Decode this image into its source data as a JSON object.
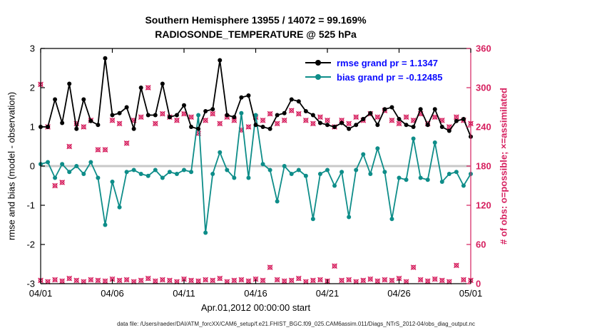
{
  "caption": "data file: /Users/raeder/DAI/ATM_forcXX/CAM6_setup/f.e21.FHIST_BGC.f09_025.CAM6assim.011/Diags_NTrS_2012-04/obs_diag_output.nc",
  "chart_data": {
    "type": "line",
    "title": "Southern Hemisphere 13955 / 14072 = 99.169%",
    "subtitle": "RADIOSONDE_TEMPERATURE @ 525 hPa",
    "xlabel": "Apr.01,2012 00:00:00 start",
    "ylabel_left": "rmse and bias (model - observation)",
    "ylabel_right": "# of obs: o=possible; ×=assimilated",
    "xlim": [
      0,
      30
    ],
    "ylim_left": [
      -3,
      3
    ],
    "ylim_right": [
      0,
      360
    ],
    "xtick_days": [
      0,
      5,
      10,
      15,
      20,
      25,
      30
    ],
    "xtick_labels": [
      "04/01",
      "04/06",
      "04/11",
      "04/16",
      "04/21",
      "04/26",
      "05/01"
    ],
    "ytick_left": [
      -3,
      -2,
      -1,
      0,
      1,
      2,
      3
    ],
    "ytick_right": [
      0,
      60,
      120,
      180,
      240,
      300,
      360
    ],
    "x_start": 0,
    "x_step": 0.5,
    "legend": [
      {
        "series": "rmse",
        "label": "rmse grand pr = 1.1347"
      },
      {
        "series": "bias",
        "label": "bias grand pr = -0.12485"
      }
    ],
    "series": [
      {
        "name": "rmse",
        "axis": "left",
        "values": [
          1.0,
          1.0,
          1.7,
          1.1,
          2.1,
          0.95,
          1.7,
          1.15,
          1.05,
          2.75,
          1.3,
          1.35,
          1.5,
          0.95,
          2.0,
          1.3,
          1.3,
          2.1,
          1.25,
          1.3,
          1.55,
          1.0,
          0.95,
          1.4,
          1.45,
          2.7,
          1.3,
          1.25,
          1.75,
          1.8,
          1.05,
          1.0,
          0.95,
          1.3,
          1.35,
          1.7,
          1.65,
          1.4,
          1.3,
          1.1,
          1.05,
          1.0,
          1.1,
          0.95,
          1.05,
          1.2,
          1.35,
          1.05,
          1.45,
          1.5,
          1.2,
          1.05,
          1.0,
          1.45,
          1.05,
          1.45,
          1.0,
          0.9,
          1.15,
          1.2,
          0.75
        ]
      },
      {
        "name": "bias",
        "axis": "left",
        "values": [
          0.05,
          0.1,
          -0.3,
          0.05,
          -0.15,
          0.0,
          -0.2,
          0.1,
          -0.3,
          -1.5,
          -0.4,
          -1.05,
          -0.15,
          -0.1,
          -0.2,
          -0.25,
          -0.1,
          -0.3,
          -0.15,
          -0.2,
          -0.1,
          -0.15,
          1.3,
          -1.7,
          -0.2,
          0.35,
          -0.1,
          -0.3,
          1.35,
          -0.3,
          1.3,
          0.05,
          -0.1,
          -0.9,
          0.0,
          -0.2,
          -0.1,
          -0.25,
          -1.35,
          -0.2,
          -0.1,
          -0.5,
          -0.15,
          -1.3,
          -0.1,
          0.3,
          -0.2,
          0.45,
          -0.15,
          -1.35,
          -0.3,
          -0.35,
          0.7,
          -0.3,
          -0.35,
          0.6,
          -0.4,
          -0.2,
          -0.15,
          -0.5,
          -0.2
        ]
      },
      {
        "name": "obs_count_upper",
        "axis": "right",
        "marker": "o-and-x-overlaid",
        "values": [
          305,
          240,
          150,
          155,
          210,
          245,
          240,
          250,
          205,
          205,
          250,
          245,
          215,
          250,
          255,
          300,
          245,
          260,
          255,
          250,
          260,
          255,
          230,
          250,
          260,
          245,
          255,
          250,
          235,
          240,
          255,
          250,
          260,
          245,
          250,
          265,
          260,
          250,
          245,
          255,
          250,
          240,
          250,
          245,
          255,
          250,
          260,
          255,
          265,
          250,
          245,
          255,
          250,
          260,
          245,
          255,
          250,
          240,
          255,
          250,
          245
        ]
      },
      {
        "name": "obs_count_lower",
        "axis": "right",
        "marker": "o-and-x-overlaid",
        "values": [
          5,
          3,
          6,
          4,
          8,
          5,
          3,
          6,
          5,
          4,
          7,
          5,
          6,
          3,
          5,
          8,
          4,
          6,
          5,
          3,
          7,
          5,
          4,
          6,
          5,
          8,
          3,
          5,
          6,
          4,
          7,
          5,
          25,
          6,
          4,
          5,
          8,
          3,
          5,
          6,
          4,
          27,
          5,
          6,
          3,
          5,
          7,
          4,
          6,
          5,
          8,
          3,
          25,
          6,
          4,
          7,
          5,
          3,
          28,
          6,
          5
        ]
      }
    ],
    "colors": {
      "rmse": "#000000",
      "bias": "#0e8d89",
      "counts": "#d6205f",
      "legend_text": "#0b0bff",
      "zero_line": "#c8c8c8",
      "axis": "#000000"
    }
  }
}
